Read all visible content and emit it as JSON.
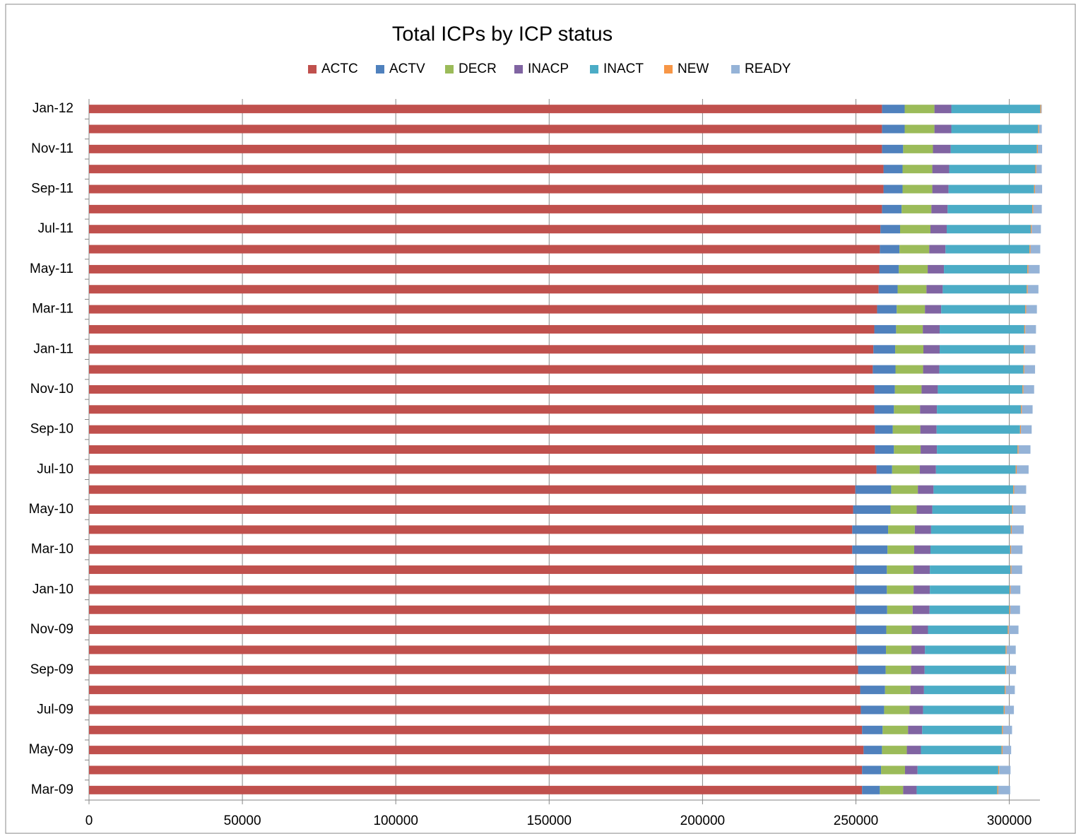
{
  "chart_data": {
    "type": "stacked-bar-horizontal",
    "title": "Total ICPs by ICP status",
    "categories": [
      "Mar-09",
      null,
      "May-09",
      null,
      "Jul-09",
      null,
      "Sep-09",
      null,
      "Nov-09",
      null,
      "Jan-10",
      null,
      "Mar-10",
      null,
      "May-10",
      null,
      "Jul-10",
      null,
      "Sep-10",
      null,
      "Nov-10",
      null,
      "Jan-11",
      null,
      "Mar-11",
      null,
      "May-11",
      null,
      "Jul-11",
      null,
      "Sep-11",
      null,
      "Nov-11",
      null,
      "Jan-12"
    ],
    "series": [
      {
        "name": "ACTC",
        "color": "#c0504d",
        "values": [
          252000,
          252000,
          252500,
          252000,
          251600,
          251400,
          250700,
          250400,
          250000,
          249800,
          249500,
          249300,
          248800,
          248800,
          249100,
          249800,
          256700,
          256200,
          256200,
          256000,
          256000,
          255500,
          255700,
          256000,
          256900,
          257400,
          257600,
          257800,
          258000,
          258500,
          259000,
          259000,
          258500,
          258500,
          258500
        ]
      },
      {
        "name": "ACTV",
        "color": "#4f81bd",
        "values": [
          5800,
          6200,
          6000,
          6700,
          7600,
          8100,
          9000,
          9400,
          9900,
          10400,
          10600,
          10800,
          11500,
          11700,
          12200,
          11700,
          5100,
          6200,
          5800,
          6400,
          6700,
          7400,
          7100,
          7100,
          6400,
          6200,
          6400,
          6400,
          6400,
          6400,
          6200,
          6200,
          6900,
          7400,
          7400
        ]
      },
      {
        "name": "DECR",
        "color": "#9bbb59",
        "values": [
          7600,
          7800,
          8100,
          8300,
          8300,
          8300,
          8300,
          8300,
          8300,
          8300,
          8700,
          8700,
          8700,
          8700,
          8500,
          8700,
          9000,
          8700,
          9000,
          8500,
          8700,
          9000,
          9200,
          8700,
          9200,
          9400,
          9400,
          9700,
          9900,
          9700,
          9700,
          9700,
          9700,
          9700,
          9700
        ]
      },
      {
        "name": "INACP",
        "color": "#8064a2",
        "values": [
          4400,
          4100,
          4600,
          4600,
          4400,
          4400,
          4400,
          4400,
          5300,
          5500,
          5300,
          5300,
          5300,
          5300,
          5100,
          5100,
          5300,
          5300,
          5300,
          5500,
          5300,
          5300,
          5300,
          5500,
          5300,
          5300,
          5300,
          5300,
          5300,
          5300,
          5300,
          5500,
          5800,
          5500,
          5500
        ]
      },
      {
        "name": "INACT",
        "color": "#4bacc6",
        "values": [
          26300,
          26300,
          26300,
          26000,
          26300,
          26300,
          26300,
          26300,
          26000,
          26000,
          26000,
          26300,
          26000,
          26000,
          26000,
          26000,
          26000,
          26300,
          27200,
          27400,
          27600,
          27400,
          27400,
          27600,
          27400,
          27400,
          27200,
          27400,
          27400,
          27600,
          27900,
          28100,
          28100,
          28300,
          29000
        ]
      },
      {
        "name": "NEW",
        "color": "#f79646",
        "values": [
          300,
          300,
          300,
          300,
          300,
          300,
          300,
          300,
          300,
          300,
          300,
          300,
          300,
          300,
          300,
          300,
          300,
          300,
          300,
          300,
          300,
          300,
          300,
          300,
          300,
          300,
          300,
          300,
          300,
          300,
          300,
          300,
          300,
          300,
          300
        ]
      },
      {
        "name": "READY",
        "color": "#95b3d7",
        "values": [
          3900,
          3700,
          2800,
          3000,
          3000,
          3000,
          3200,
          3000,
          3200,
          3200,
          3200,
          3500,
          3700,
          3900,
          4100,
          3900,
          3900,
          3900,
          3500,
          3500,
          3500,
          3500,
          3500,
          3500,
          3500,
          3500,
          3700,
          3200,
          3000,
          2800,
          2300,
          1800,
          1400,
          900,
          200
        ]
      }
    ],
    "xlim": [
      0,
      310000
    ],
    "xticks": [
      0,
      50000,
      100000,
      150000,
      200000,
      250000,
      300000
    ],
    "grid": true,
    "legend": "top"
  }
}
